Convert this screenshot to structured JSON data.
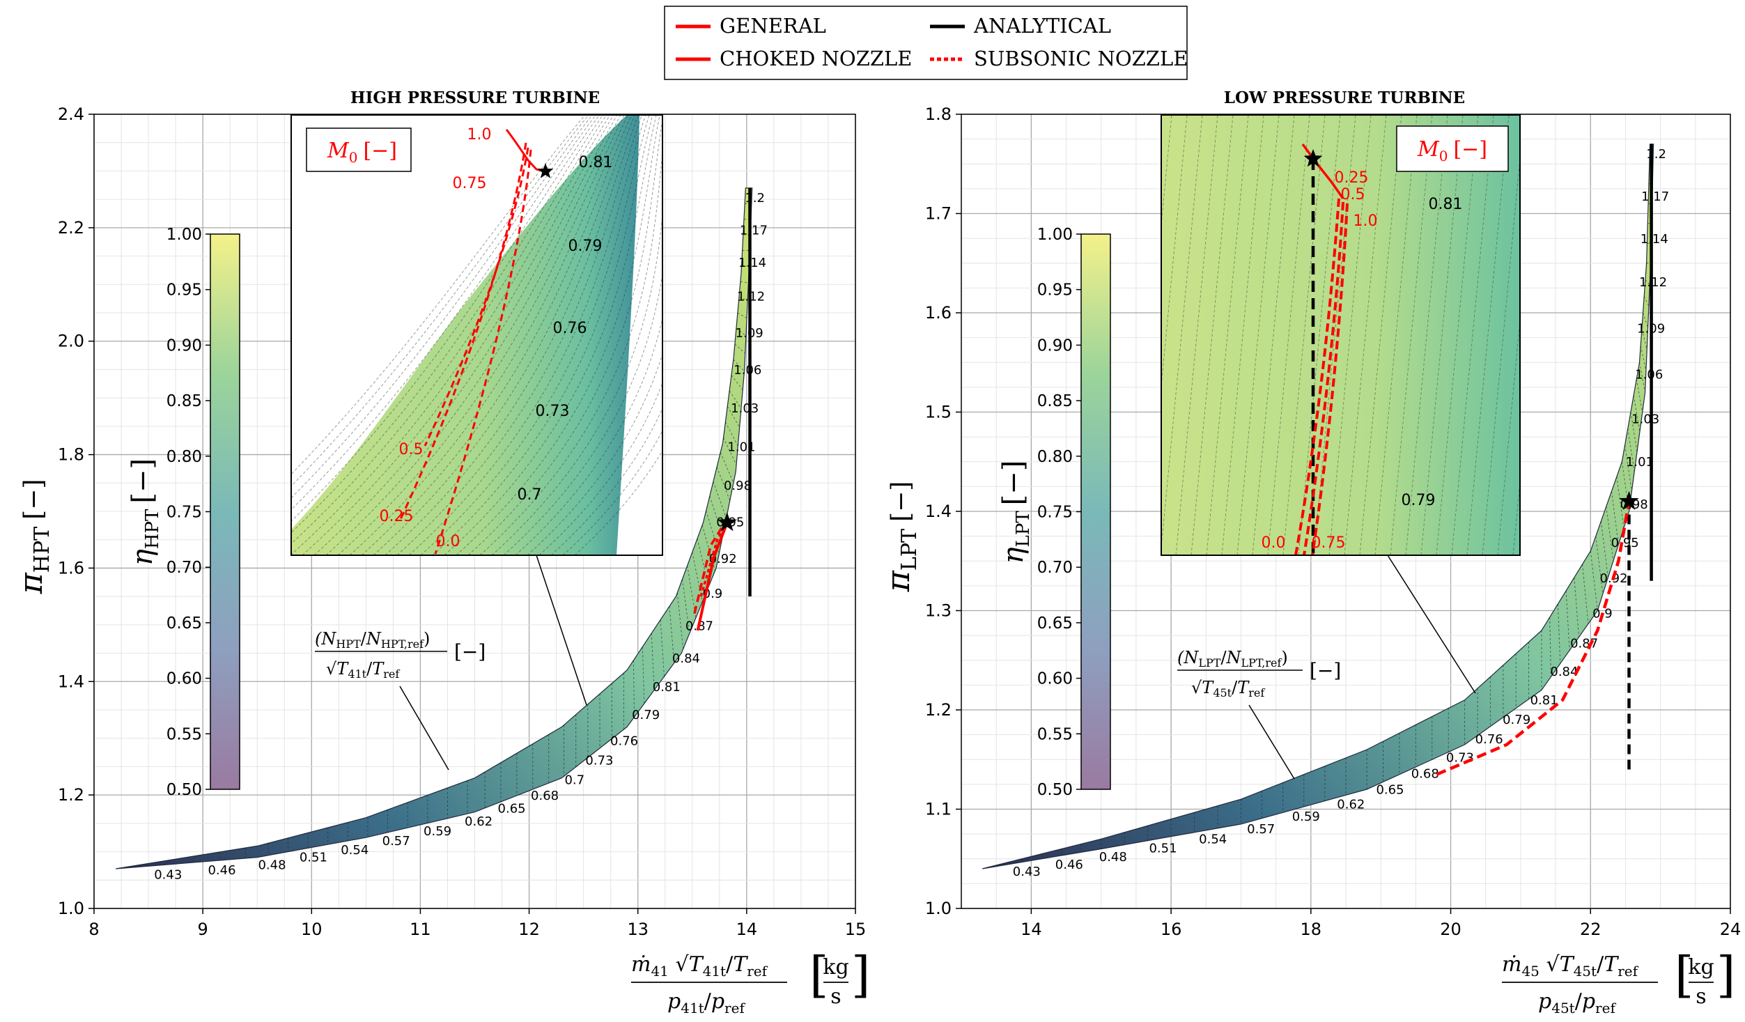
{
  "legend": {
    "items": [
      {
        "label": "GENERAL",
        "color": "#ff0000",
        "style": "solid"
      },
      {
        "label": "CHOKED NOZZLE",
        "color": "#ff0000",
        "style": "solid"
      },
      {
        "label": "ANALYTICAL",
        "color": "#000000",
        "style": "solid"
      },
      {
        "label": "SUBSONIC NOZZLE",
        "color": "#ff0000",
        "style": "dotted"
      }
    ]
  },
  "colorbar": {
    "label": "η",
    "ticks": [
      "1.00",
      "0.95",
      "0.90",
      "0.85",
      "0.80",
      "0.75",
      "0.70",
      "0.65",
      "0.60",
      "0.55",
      "0.50"
    ],
    "range": [
      0.5,
      1.0
    ],
    "colormap": [
      "#440154",
      "#3b528b",
      "#21918c",
      "#5ec962",
      "#fde725"
    ]
  },
  "units": {
    "kg": "kg",
    "s": "s",
    "dash": "[−]"
  },
  "chart_data": [
    {
      "type": "area",
      "title": "HIGH PRESSURE TURBINE",
      "xlabel_sub": "41",
      "xlabel_temp_sub": "41t",
      "ylabel_sub": "HPT",
      "speed_label_sub": "HPT",
      "speed_ref_sub": "HPT,ref",
      "speed_temp_sub": "41t",
      "xlim": [
        8,
        15
      ],
      "ylim": [
        1.0,
        2.4
      ],
      "xticks": [
        "8",
        "9",
        "10",
        "11",
        "12",
        "13",
        "14",
        "15"
      ],
      "yticks": [
        "1.0",
        "1.2",
        "1.4",
        "1.6",
        "1.8",
        "2.0",
        "2.2",
        "2.4"
      ],
      "map_upper": [
        [
          8.2,
          1.07
        ],
        [
          9.5,
          1.11
        ],
        [
          10.5,
          1.16
        ],
        [
          11.5,
          1.23
        ],
        [
          12.3,
          1.32
        ],
        [
          12.9,
          1.42
        ],
        [
          13.35,
          1.55
        ],
        [
          13.6,
          1.68
        ],
        [
          13.78,
          1.82
        ],
        [
          13.88,
          1.97
        ],
        [
          13.95,
          2.12
        ],
        [
          13.99,
          2.27
        ]
      ],
      "map_lower": [
        [
          8.2,
          1.07
        ],
        [
          9.5,
          1.09
        ],
        [
          10.5,
          1.125
        ],
        [
          11.5,
          1.17
        ],
        [
          12.3,
          1.23
        ],
        [
          12.9,
          1.32
        ],
        [
          13.4,
          1.45
        ],
        [
          13.72,
          1.6
        ],
        [
          13.9,
          1.77
        ],
        [
          13.98,
          1.95
        ],
        [
          14.02,
          2.12
        ],
        [
          14.05,
          2.27
        ]
      ],
      "speed_labels": [
        "0.43",
        "0.46",
        "0.48",
        "0.51",
        "0.54",
        "0.57",
        "0.59",
        "0.62",
        "0.65",
        "0.68",
        "0.7",
        "0.73",
        "0.76",
        "0.79",
        "0.81",
        "0.84",
        "0.87",
        "0.9",
        "0.92",
        "0.95",
        "0.98",
        "1.01",
        "1.03",
        "1.06",
        "1.09",
        "1.12",
        "1.14",
        "1.17",
        "1.2"
      ],
      "analytical_line": [
        [
          14.03,
          1.55
        ],
        [
          14.03,
          2.27
        ]
      ],
      "general_line": [
        [
          13.55,
          1.49
        ],
        [
          13.7,
          1.62
        ],
        [
          13.82,
          1.68
        ]
      ],
      "choked_nozzle_line": [
        [
          13.52,
          1.52
        ],
        [
          13.67,
          1.64
        ],
        [
          13.8,
          1.68
        ]
      ],
      "subsonic_nozzle_line": [
        [
          13.58,
          1.55
        ],
        [
          13.73,
          1.65
        ],
        [
          13.82,
          1.68
        ]
      ],
      "design_point": [
        13.82,
        1.68
      ],
      "inset": {
        "mach_label": "M",
        "mach_sub": "0",
        "mach_unit": "[−]",
        "efficiency_labels": [
          "0.81",
          "0.79",
          "0.76",
          "0.73",
          "0.7"
        ],
        "mach_values": [
          "1.0",
          "0.75",
          "0.5",
          "0.25",
          "0.0"
        ]
      }
    },
    {
      "type": "area",
      "title": "LOW PRESSURE TURBINE",
      "xlabel_sub": "45",
      "xlabel_temp_sub": "45t",
      "ylabel_sub": "LPT",
      "speed_label_sub": "LPT",
      "speed_ref_sub": "LPT,ref",
      "speed_temp_sub": "45t",
      "xlim": [
        13,
        24
      ],
      "ylim": [
        1.0,
        1.8
      ],
      "xticks": [
        "14",
        "16",
        "18",
        "20",
        "22",
        "24"
      ],
      "yticks": [
        "1.0",
        "1.1",
        "1.2",
        "1.3",
        "1.4",
        "1.5",
        "1.6",
        "1.7",
        "1.8"
      ],
      "map_upper": [
        [
          13.3,
          1.04
        ],
        [
          15.0,
          1.07
        ],
        [
          17.0,
          1.11
        ],
        [
          18.8,
          1.16
        ],
        [
          20.2,
          1.21
        ],
        [
          21.3,
          1.28
        ],
        [
          22.0,
          1.36
        ],
        [
          22.45,
          1.45
        ],
        [
          22.7,
          1.55
        ],
        [
          22.8,
          1.65
        ],
        [
          22.85,
          1.77
        ]
      ],
      "map_lower": [
        [
          13.3,
          1.04
        ],
        [
          15.0,
          1.06
        ],
        [
          17.0,
          1.085
        ],
        [
          18.8,
          1.12
        ],
        [
          20.2,
          1.165
        ],
        [
          21.3,
          1.22
        ],
        [
          22.1,
          1.3
        ],
        [
          22.55,
          1.4
        ],
        [
          22.78,
          1.52
        ],
        [
          22.86,
          1.65
        ],
        [
          22.9,
          1.77
        ]
      ],
      "speed_labels": [
        "0.43",
        "0.46",
        "0.48",
        "0.51",
        "0.54",
        "0.57",
        "0.59",
        "0.62",
        "0.65",
        "0.68",
        "0.73",
        "0.76",
        "0.79",
        "0.81",
        "0.84",
        "0.87",
        "0.9",
        "0.92",
        "0.95",
        "0.98",
        "1.01",
        "1.03",
        "1.06",
        "1.09",
        "1.12",
        "1.14",
        "1.17",
        "1.2"
      ],
      "analytical_line": [
        [
          22.87,
          1.33
        ],
        [
          22.87,
          1.77
        ]
      ],
      "analytical_dashed_line": [
        [
          22.55,
          1.14
        ],
        [
          22.55,
          1.41
        ]
      ],
      "general_line": [
        [
          19.8,
          1.135
        ],
        [
          20.8,
          1.165
        ],
        [
          21.6,
          1.21
        ],
        [
          22.1,
          1.28
        ],
        [
          22.4,
          1.35
        ],
        [
          22.55,
          1.41
        ]
      ],
      "design_point": [
        22.55,
        1.41
      ],
      "inset": {
        "mach_label": "M",
        "mach_sub": "0",
        "mach_unit": "[−]",
        "efficiency_labels": [
          "0.81",
          "0.79"
        ],
        "mach_values": [
          "0.25",
          "0.5",
          "1.0",
          "0.0",
          "0.75"
        ]
      }
    }
  ]
}
